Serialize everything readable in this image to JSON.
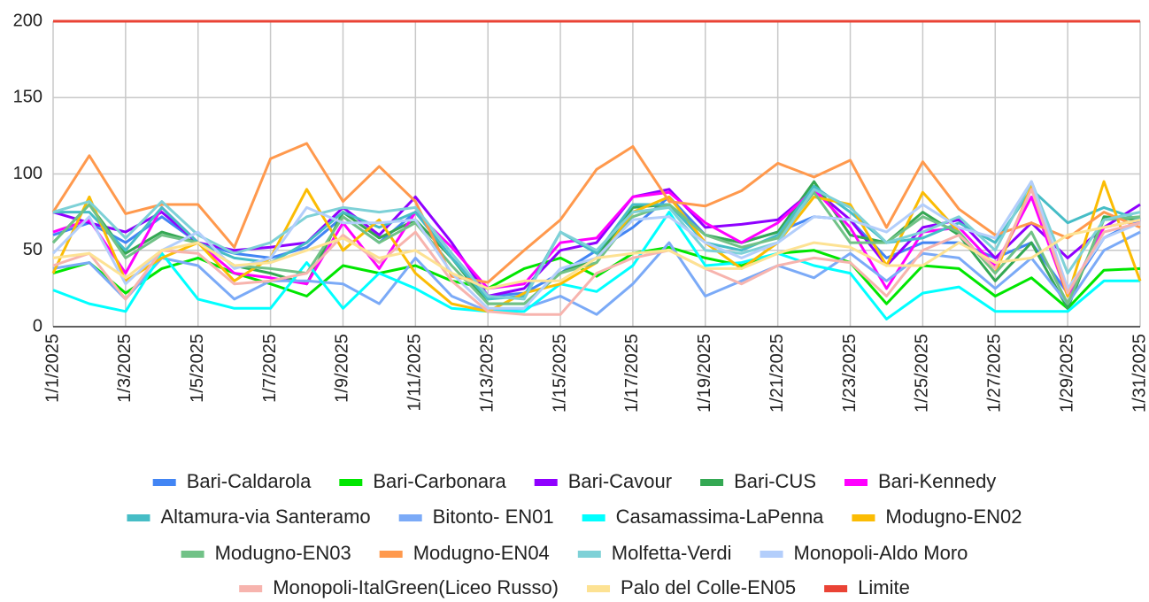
{
  "chart_data": {
    "type": "line",
    "categories": [
      "1/1/2025",
      null,
      "1/3/2025",
      null,
      "1/5/2025",
      null,
      "1/7/2025",
      null,
      "1/9/2025",
      null,
      "1/11/2025",
      null,
      "1/13/2025",
      null,
      "1/15/2025",
      null,
      "1/17/2025",
      null,
      "1/19/2025",
      null,
      "1/21/2025",
      null,
      "1/23/2025",
      null,
      "1/25/2025",
      null,
      "1/27/2025",
      null,
      "1/29/2025",
      null,
      "1/31/2025"
    ],
    "ylim": [
      0,
      200
    ],
    "yticks": [
      0,
      50,
      100,
      150,
      200
    ],
    "grid": true,
    "legend": "bottom",
    "series": [
      {
        "name": "Bari-Caldarola",
        "color": "#4285f4",
        "values": [
          60,
          68,
          55,
          72,
          55,
          48,
          45,
          52,
          72,
          55,
          75,
          45,
          20,
          22,
          35,
          50,
          65,
          85,
          60,
          55,
          62,
          72,
          70,
          45,
          55,
          55,
          45,
          55,
          22,
          58,
          70
        ]
      },
      {
        "name": "Bari-Carbonara",
        "color": "#00e600",
        "values": [
          35,
          42,
          22,
          38,
          45,
          35,
          28,
          20,
          40,
          35,
          40,
          30,
          25,
          38,
          45,
          33,
          48,
          52,
          45,
          40,
          48,
          50,
          42,
          15,
          40,
          38,
          20,
          32,
          12,
          37,
          38
        ]
      },
      {
        "name": "Bari-Cavour",
        "color": "#8f00ff",
        "values": [
          75,
          68,
          62,
          75,
          55,
          50,
          52,
          55,
          78,
          60,
          85,
          55,
          20,
          25,
          50,
          55,
          85,
          90,
          65,
          67,
          70,
          90,
          70,
          40,
          65,
          70,
          45,
          68,
          45,
          65,
          80
        ]
      },
      {
        "name": "Bari-CUS",
        "color": "#34a853",
        "values": [
          55,
          80,
          48,
          62,
          55,
          40,
          35,
          28,
          75,
          58,
          70,
          45,
          15,
          15,
          35,
          45,
          78,
          80,
          60,
          55,
          62,
          95,
          60,
          55,
          75,
          60,
          30,
          55,
          12,
          72,
          70
        ]
      },
      {
        "name": "Bari-Kennedy",
        "color": "#ff00ff",
        "values": [
          62,
          70,
          35,
          78,
          55,
          35,
          32,
          28,
          68,
          38,
          75,
          52,
          25,
          28,
          55,
          58,
          85,
          88,
          68,
          55,
          68,
          90,
          65,
          25,
          62,
          65,
          40,
          85,
          20,
          65,
          70
        ]
      },
      {
        "name": "Altamura-via Santeramo",
        "color": "#46bdc6",
        "values": [
          75,
          75,
          50,
          78,
          55,
          45,
          42,
          55,
          75,
          65,
          75,
          45,
          18,
          20,
          62,
          48,
          80,
          80,
          55,
          50,
          60,
          92,
          75,
          55,
          58,
          68,
          55,
          90,
          68,
          78,
          70
        ]
      },
      {
        "name": "Bitonto- EN01",
        "color": "#7baaf7",
        "values": [
          38,
          42,
          18,
          45,
          40,
          18,
          30,
          30,
          28,
          15,
          45,
          20,
          10,
          12,
          20,
          8,
          28,
          55,
          20,
          30,
          40,
          32,
          48,
          30,
          48,
          45,
          25,
          45,
          15,
          50,
          62
        ]
      },
      {
        "name": "Casamassima-LaPenna",
        "color": "#00ffff",
        "values": [
          24,
          15,
          10,
          48,
          18,
          12,
          12,
          42,
          12,
          35,
          25,
          12,
          10,
          10,
          28,
          23,
          40,
          75,
          40,
          42,
          48,
          40,
          35,
          5,
          22,
          26,
          10,
          10,
          10,
          30,
          30
        ]
      },
      {
        "name": "Modugno-EN02",
        "color": "#fbbc04",
        "values": [
          35,
          85,
          30,
          45,
          55,
          30,
          45,
          90,
          50,
          70,
          35,
          15,
          10,
          22,
          28,
          42,
          75,
          85,
          55,
          38,
          55,
          85,
          80,
          40,
          88,
          62,
          35,
          92,
          20,
          95,
          30
        ]
      },
      {
        "name": "Modugno-EN03",
        "color": "#71c287",
        "values": [
          55,
          80,
          45,
          60,
          55,
          40,
          38,
          35,
          72,
          55,
          68,
          40,
          15,
          15,
          35,
          42,
          72,
          80,
          60,
          52,
          58,
          88,
          55,
          55,
          72,
          62,
          35,
          62,
          15,
          70,
          72
        ]
      },
      {
        "name": "Modugno-EN04",
        "color": "#ff994d",
        "values": [
          75,
          112,
          74,
          80,
          80,
          52,
          110,
          120,
          82,
          105,
          82,
          33,
          29,
          50,
          70,
          103,
          118,
          82,
          79,
          89,
          107,
          98,
          109,
          65,
          108,
          77,
          60,
          68,
          58,
          75,
          65
        ]
      },
      {
        "name": "Molfetta-Verdi",
        "color": "#7ed1d7",
        "values": [
          75,
          82,
          58,
          82,
          60,
          48,
          55,
          72,
          78,
          75,
          78,
          48,
          20,
          18,
          62,
          50,
          75,
          78,
          50,
          48,
          55,
          90,
          78,
          55,
          62,
          72,
          50,
          95,
          35,
          70,
          75
        ]
      },
      {
        "name": "Monopoli-Aldo Moro",
        "color": "#b3cefb",
        "values": [
          48,
          72,
          28,
          50,
          62,
          38,
          45,
          78,
          68,
          68,
          70,
          35,
          12,
          12,
          38,
          45,
          70,
          72,
          55,
          45,
          55,
          72,
          70,
          62,
          80,
          65,
          58,
          95,
          25,
          58,
          68
        ]
      },
      {
        "name": "Monopoli-ItalGreen(Liceo Russo)",
        "color": "#f7b4ae",
        "values": [
          40,
          48,
          18,
          50,
          48,
          28,
          30,
          35,
          60,
          42,
          62,
          30,
          10,
          8,
          8,
          35,
          45,
          50,
          38,
          28,
          40,
          45,
          42,
          20,
          50,
          60,
          38,
          90,
          22,
          62,
          68
        ]
      },
      {
        "name": "Palo del Colle-EN05",
        "color": "#fde293",
        "values": [
          45,
          48,
          32,
          50,
          55,
          40,
          42,
          50,
          58,
          45,
          50,
          35,
          25,
          30,
          30,
          45,
          48,
          50,
          38,
          38,
          48,
          55,
          52,
          40,
          40,
          55,
          42,
          45,
          60,
          65,
          70
        ]
      },
      {
        "name": "Limite",
        "color": "#ea4335",
        "values": [
          200,
          200,
          200,
          200,
          200,
          200,
          200,
          200,
          200,
          200,
          200,
          200,
          200,
          200,
          200,
          200,
          200,
          200,
          200,
          200,
          200,
          200,
          200,
          200,
          200,
          200,
          200,
          200,
          200,
          200,
          200
        ]
      }
    ]
  }
}
